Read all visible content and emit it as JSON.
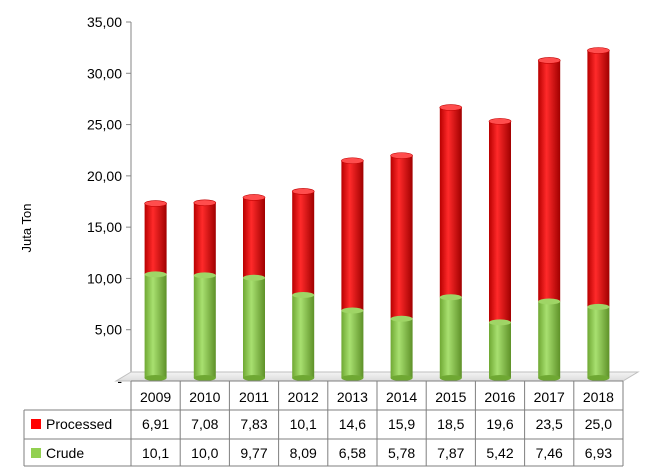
{
  "chart_data": {
    "type": "bar",
    "stacked": true,
    "three_d": true,
    "title": "",
    "xlabel": "",
    "ylabel": "Juta Ton",
    "ylim": [
      0,
      35
    ],
    "yticks": [
      "-",
      "5,00",
      "10,00",
      "15,00",
      "20,00",
      "25,00",
      "30,00",
      "35,00"
    ],
    "grid": false,
    "legend": "data-table",
    "categories": [
      "2009",
      "2010",
      "2011",
      "2012",
      "2013",
      "2014",
      "2015",
      "2016",
      "2017",
      "2018"
    ],
    "series": [
      {
        "name": "Processed",
        "color": "#ff0000",
        "values": [
          6.91,
          7.08,
          7.83,
          10.1,
          14.6,
          15.9,
          18.5,
          19.6,
          23.5,
          25.0
        ],
        "labels": [
          "6,91",
          "7,08",
          "7,83",
          "10,1",
          "14,6",
          "15,9",
          "18,5",
          "19,6",
          "23,5",
          "25,0"
        ]
      },
      {
        "name": "Crude",
        "color": "#92d050",
        "values": [
          10.1,
          10.0,
          9.77,
          8.09,
          6.58,
          5.78,
          7.87,
          5.42,
          7.46,
          6.93
        ],
        "labels": [
          "10,1",
          "10,0",
          "9,77",
          "8,09",
          "6,58",
          "5,78",
          "7,87",
          "5,42",
          "7,46",
          "6,93"
        ]
      }
    ]
  }
}
